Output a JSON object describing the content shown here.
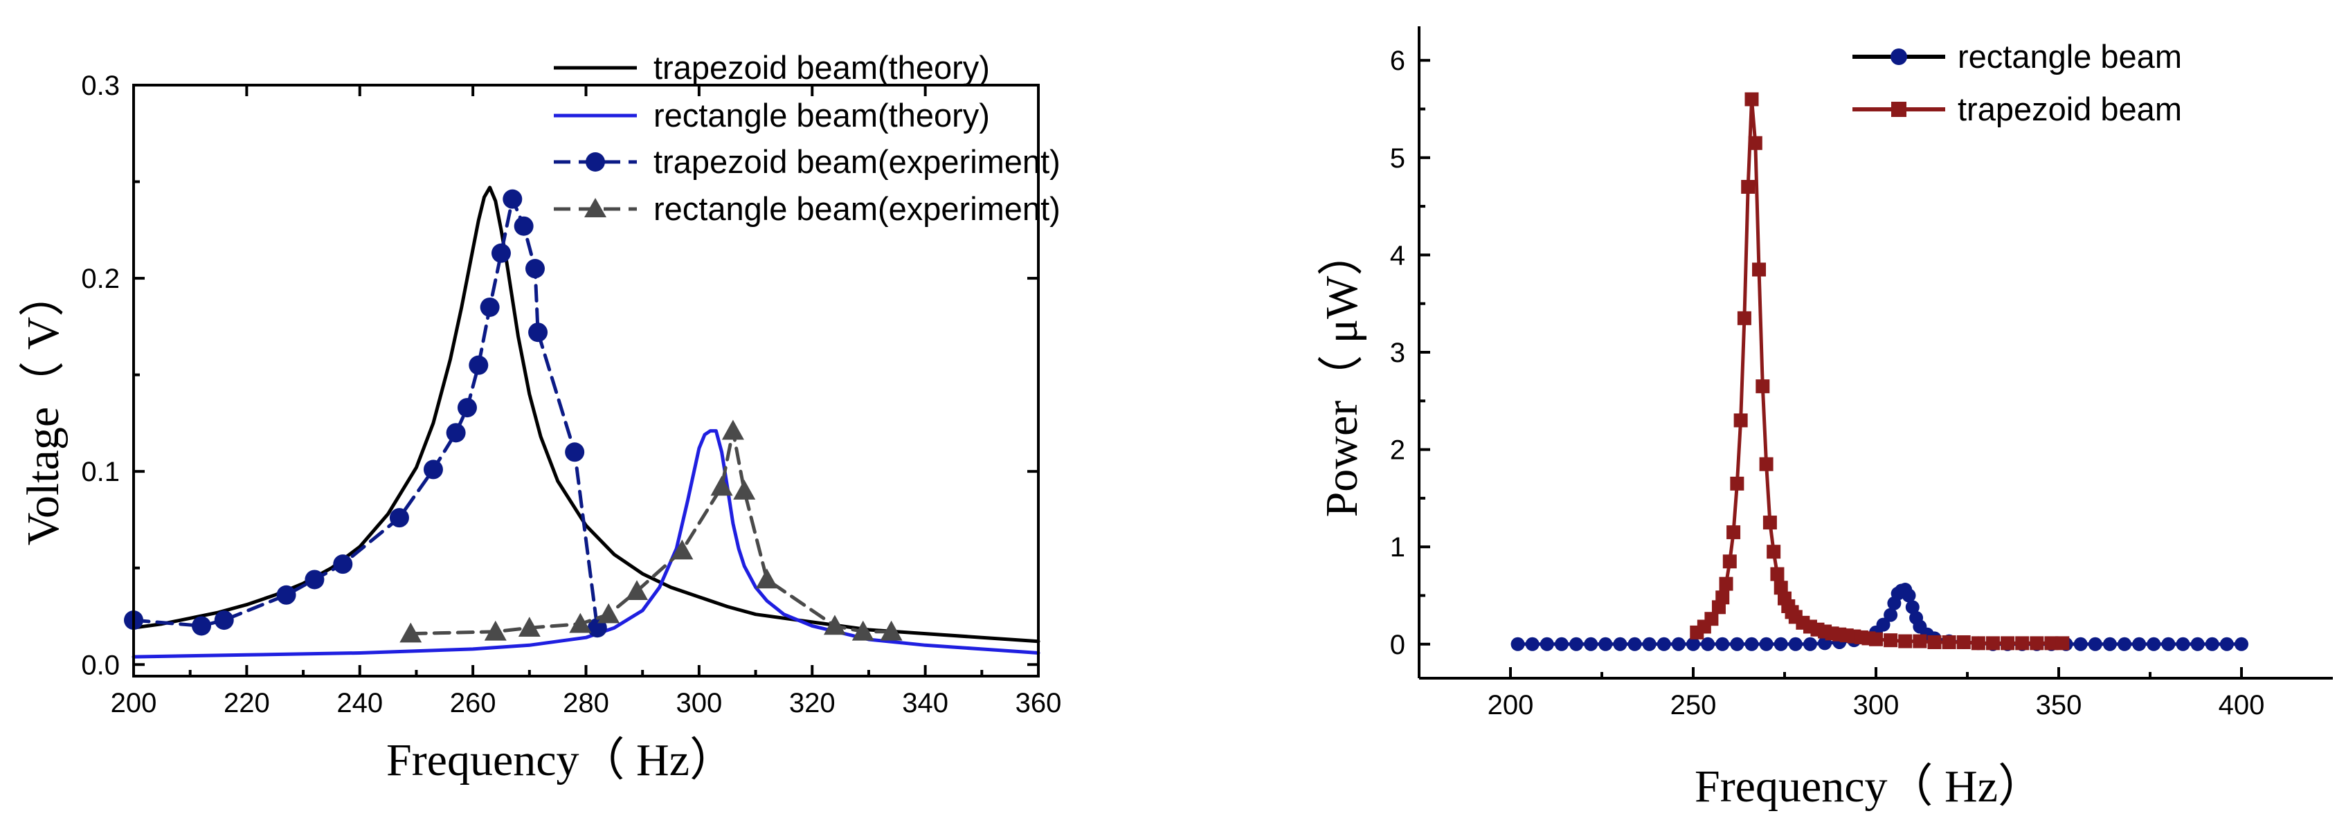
{
  "chart_data": [
    {
      "type": "line",
      "xlabel": "Frequency（ Hz）",
      "ylabel": "Voltage（ V）",
      "xlim": [
        200,
        360
      ],
      "ylim": [
        -0.006,
        0.3
      ],
      "xticks": [
        200,
        220,
        240,
        260,
        280,
        300,
        320,
        340,
        360
      ],
      "xtick_labels": [
        "200",
        "220",
        "240",
        "260",
        "280",
        "300",
        "320",
        "340",
        "360"
      ],
      "yticks": [
        0.0,
        0.1,
        0.2,
        0.3
      ],
      "ytick_labels": [
        "0.0",
        "0.1",
        "0.2",
        "0.3"
      ],
      "legend_position": "top-right",
      "series": [
        {
          "name": "trapezoid beam(theory)",
          "color": "#000000",
          "style": "solid",
          "marker": "none",
          "x": [
            200,
            205,
            210,
            215,
            220,
            225,
            230,
            235,
            240,
            245,
            250,
            253,
            256,
            258,
            260,
            261,
            262,
            263,
            264,
            265,
            266,
            268,
            270,
            272,
            275,
            280,
            285,
            290,
            295,
            300,
            305,
            310,
            320,
            330,
            340,
            350,
            360
          ],
          "y": [
            0.019,
            0.021,
            0.024,
            0.027,
            0.031,
            0.036,
            0.042,
            0.05,
            0.061,
            0.078,
            0.102,
            0.125,
            0.158,
            0.185,
            0.215,
            0.23,
            0.242,
            0.247,
            0.24,
            0.225,
            0.208,
            0.17,
            0.14,
            0.118,
            0.095,
            0.072,
            0.057,
            0.047,
            0.04,
            0.035,
            0.03,
            0.026,
            0.022,
            0.018,
            0.016,
            0.014,
            0.012
          ]
        },
        {
          "name": "rectangle beam(theory)",
          "color": "#1f1fe0",
          "style": "solid",
          "marker": "none",
          "x": [
            200,
            220,
            240,
            260,
            270,
            280,
            285,
            290,
            293,
            296,
            298,
            300,
            301,
            302,
            303,
            304,
            305,
            306,
            307,
            308,
            310,
            312,
            315,
            320,
            330,
            340,
            350,
            360
          ],
          "y": [
            0.004,
            0.005,
            0.006,
            0.008,
            0.01,
            0.014,
            0.019,
            0.028,
            0.04,
            0.06,
            0.085,
            0.112,
            0.119,
            0.121,
            0.121,
            0.11,
            0.092,
            0.073,
            0.06,
            0.051,
            0.04,
            0.033,
            0.026,
            0.02,
            0.013,
            0.01,
            0.008,
            0.006
          ]
        },
        {
          "name": "trapezoid beam(experiment)",
          "color": "#0b1a86",
          "style": "dashed",
          "marker": "circle",
          "x": [
            200,
            212,
            216,
            227,
            232,
            237,
            247,
            253,
            257,
            259,
            261,
            263,
            265,
            267,
            269,
            271,
            271.5,
            278,
            282
          ],
          "y": [
            0.023,
            0.02,
            0.023,
            0.036,
            0.044,
            0.052,
            0.076,
            0.101,
            0.12,
            0.133,
            0.155,
            0.185,
            0.213,
            0.241,
            0.227,
            0.205,
            0.172,
            0.11,
            0.019
          ]
        },
        {
          "name": "rectangle beam(experiment)",
          "color": "#4a4a4a",
          "style": "dashed",
          "marker": "triangle",
          "x": [
            249,
            264,
            270,
            279,
            284,
            289,
            297,
            304,
            306,
            308,
            312,
            324,
            329,
            334
          ],
          "y": [
            0.016,
            0.017,
            0.019,
            0.021,
            0.026,
            0.038,
            0.059,
            0.092,
            0.121,
            0.09,
            0.044,
            0.02,
            0.017,
            0.017
          ]
        }
      ]
    },
    {
      "type": "line",
      "xlabel": "Frequency（ Hz）",
      "ylabel": "Power（ μW）",
      "xlim": [
        175,
        425
      ],
      "ylim": [
        -0.35,
        6.35
      ],
      "xticks": [
        200,
        250,
        300,
        350,
        400
      ],
      "xtick_labels": [
        "200",
        "250",
        "300",
        "350",
        "400"
      ],
      "yticks": [
        0,
        1,
        2,
        3,
        4,
        5,
        6
      ],
      "ytick_labels": [
        "0",
        "1",
        "2",
        "3",
        "4",
        "5",
        "6"
      ],
      "legend_position": "top-right",
      "series": [
        {
          "name": "rectangle beam",
          "color": "#0b1a86",
          "style": "solid",
          "marker": "circle",
          "x": [
            202,
            206,
            210,
            214,
            218,
            222,
            226,
            230,
            234,
            238,
            242,
            246,
            250,
            254,
            258,
            262,
            266,
            270,
            274,
            278,
            282,
            286,
            290,
            294,
            297,
            300,
            302,
            304,
            305,
            306,
            307,
            308,
            309,
            310,
            311,
            312,
            314,
            316,
            320,
            324,
            328,
            332,
            336,
            340,
            344,
            348,
            352,
            356,
            360,
            364,
            368,
            372,
            376,
            380,
            384,
            388,
            392,
            396,
            400
          ],
          "y": [
            0,
            0,
            0,
            0,
            0,
            0,
            0,
            0,
            0,
            0,
            0,
            0,
            0,
            0,
            0,
            0,
            0,
            0,
            0,
            0,
            0,
            0.01,
            0.02,
            0.04,
            0.07,
            0.12,
            0.2,
            0.3,
            0.42,
            0.52,
            0.55,
            0.56,
            0.5,
            0.38,
            0.27,
            0.18,
            0.1,
            0.06,
            0.03,
            0.02,
            0.01,
            0,
            0,
            0,
            0,
            0,
            0,
            0,
            0,
            0,
            0,
            0,
            0,
            0,
            0,
            0,
            0,
            0,
            0
          ]
        },
        {
          "name": "trapezoid beam",
          "color": "#8b1a1a",
          "style": "solid",
          "marker": "square",
          "x": [
            251,
            253,
            255,
            257,
            258,
            259,
            260,
            261,
            262,
            263,
            264,
            265,
            266,
            267,
            268,
            269,
            270,
            271,
            272,
            273,
            274,
            275,
            276,
            277,
            278,
            280,
            282,
            284,
            286,
            288,
            290,
            292,
            294,
            296,
            298,
            300,
            304,
            308,
            312,
            316,
            320,
            324,
            328,
            332,
            336,
            340,
            344,
            348,
            351
          ],
          "y": [
            0.12,
            0.18,
            0.26,
            0.38,
            0.48,
            0.62,
            0.85,
            1.15,
            1.65,
            2.3,
            3.35,
            4.7,
            5.6,
            5.15,
            3.85,
            2.65,
            1.85,
            1.25,
            0.95,
            0.72,
            0.58,
            0.47,
            0.39,
            0.33,
            0.28,
            0.22,
            0.18,
            0.15,
            0.13,
            0.11,
            0.1,
            0.09,
            0.08,
            0.07,
            0.06,
            0.05,
            0.04,
            0.03,
            0.03,
            0.02,
            0.02,
            0.02,
            0.01,
            0.01,
            0.01,
            0.01,
            0.01,
            0.01,
            0.01
          ]
        }
      ]
    }
  ]
}
